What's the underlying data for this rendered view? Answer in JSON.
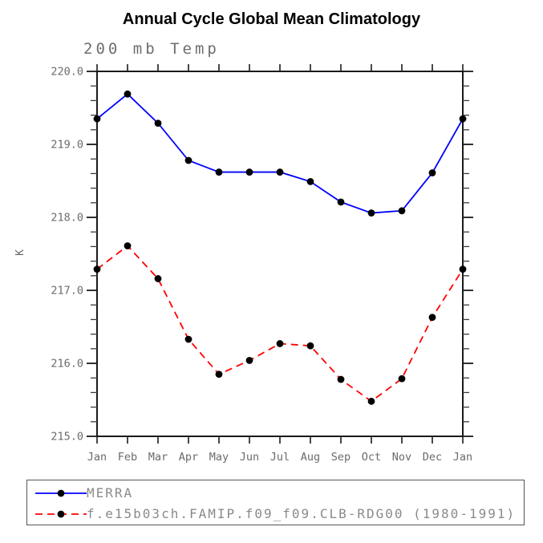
{
  "chart": {
    "title": "Annual Cycle Global Mean Climatology",
    "subtitle": "200 mb Temp",
    "ylabel": "K"
  },
  "chart_data": {
    "type": "line",
    "title": "Annual Cycle Global Mean Climatology",
    "subtitle": "200 mb Temp",
    "xlabel": "",
    "ylabel": "K",
    "ylim": [
      215.0,
      220.0
    ],
    "y_major_step": 1.0,
    "y_minor_step": 0.2,
    "grid": false,
    "legend_position": "bottom-left",
    "categories": [
      "Jan",
      "Feb",
      "Mar",
      "Apr",
      "May",
      "Jun",
      "Jul",
      "Aug",
      "Sep",
      "Oct",
      "Nov",
      "Dec",
      "Jan"
    ],
    "series": [
      {
        "name": "MERRA",
        "color": "#0000ff",
        "style": "solid",
        "marker": "circle",
        "marker_color": "#000000",
        "values": [
          219.35,
          219.69,
          219.29,
          218.78,
          218.62,
          218.62,
          218.62,
          218.49,
          218.21,
          218.06,
          218.09,
          218.61,
          219.35
        ]
      },
      {
        "name": "f.e15b03ch.FAMIP.f09_f09.CLB-RDG00 (1980-1991)",
        "color": "#ff0000",
        "style": "dashed",
        "marker": "circle",
        "marker_color": "#000000",
        "values": [
          217.29,
          217.61,
          217.16,
          216.33,
          215.85,
          216.04,
          216.27,
          216.24,
          215.78,
          215.48,
          215.79,
          216.63,
          217.29
        ]
      }
    ]
  },
  "legend": {
    "items": [
      {
        "label": "MERRA"
      },
      {
        "label": "f.e15b03ch.FAMIP.f09_f09.CLB-RDG00 (1980-1991)"
      }
    ]
  },
  "colors": {
    "background": "#ffffff",
    "title": "#000000",
    "subtitle": "#6e6e6e",
    "axis": "#1a1a1a",
    "tick_label": "#6b6b6b",
    "legend_text": "#8a8a8a",
    "legend_border": "#555555",
    "merra_line": "#0000ff",
    "model_line": "#ff0000",
    "marker": "#000000"
  }
}
